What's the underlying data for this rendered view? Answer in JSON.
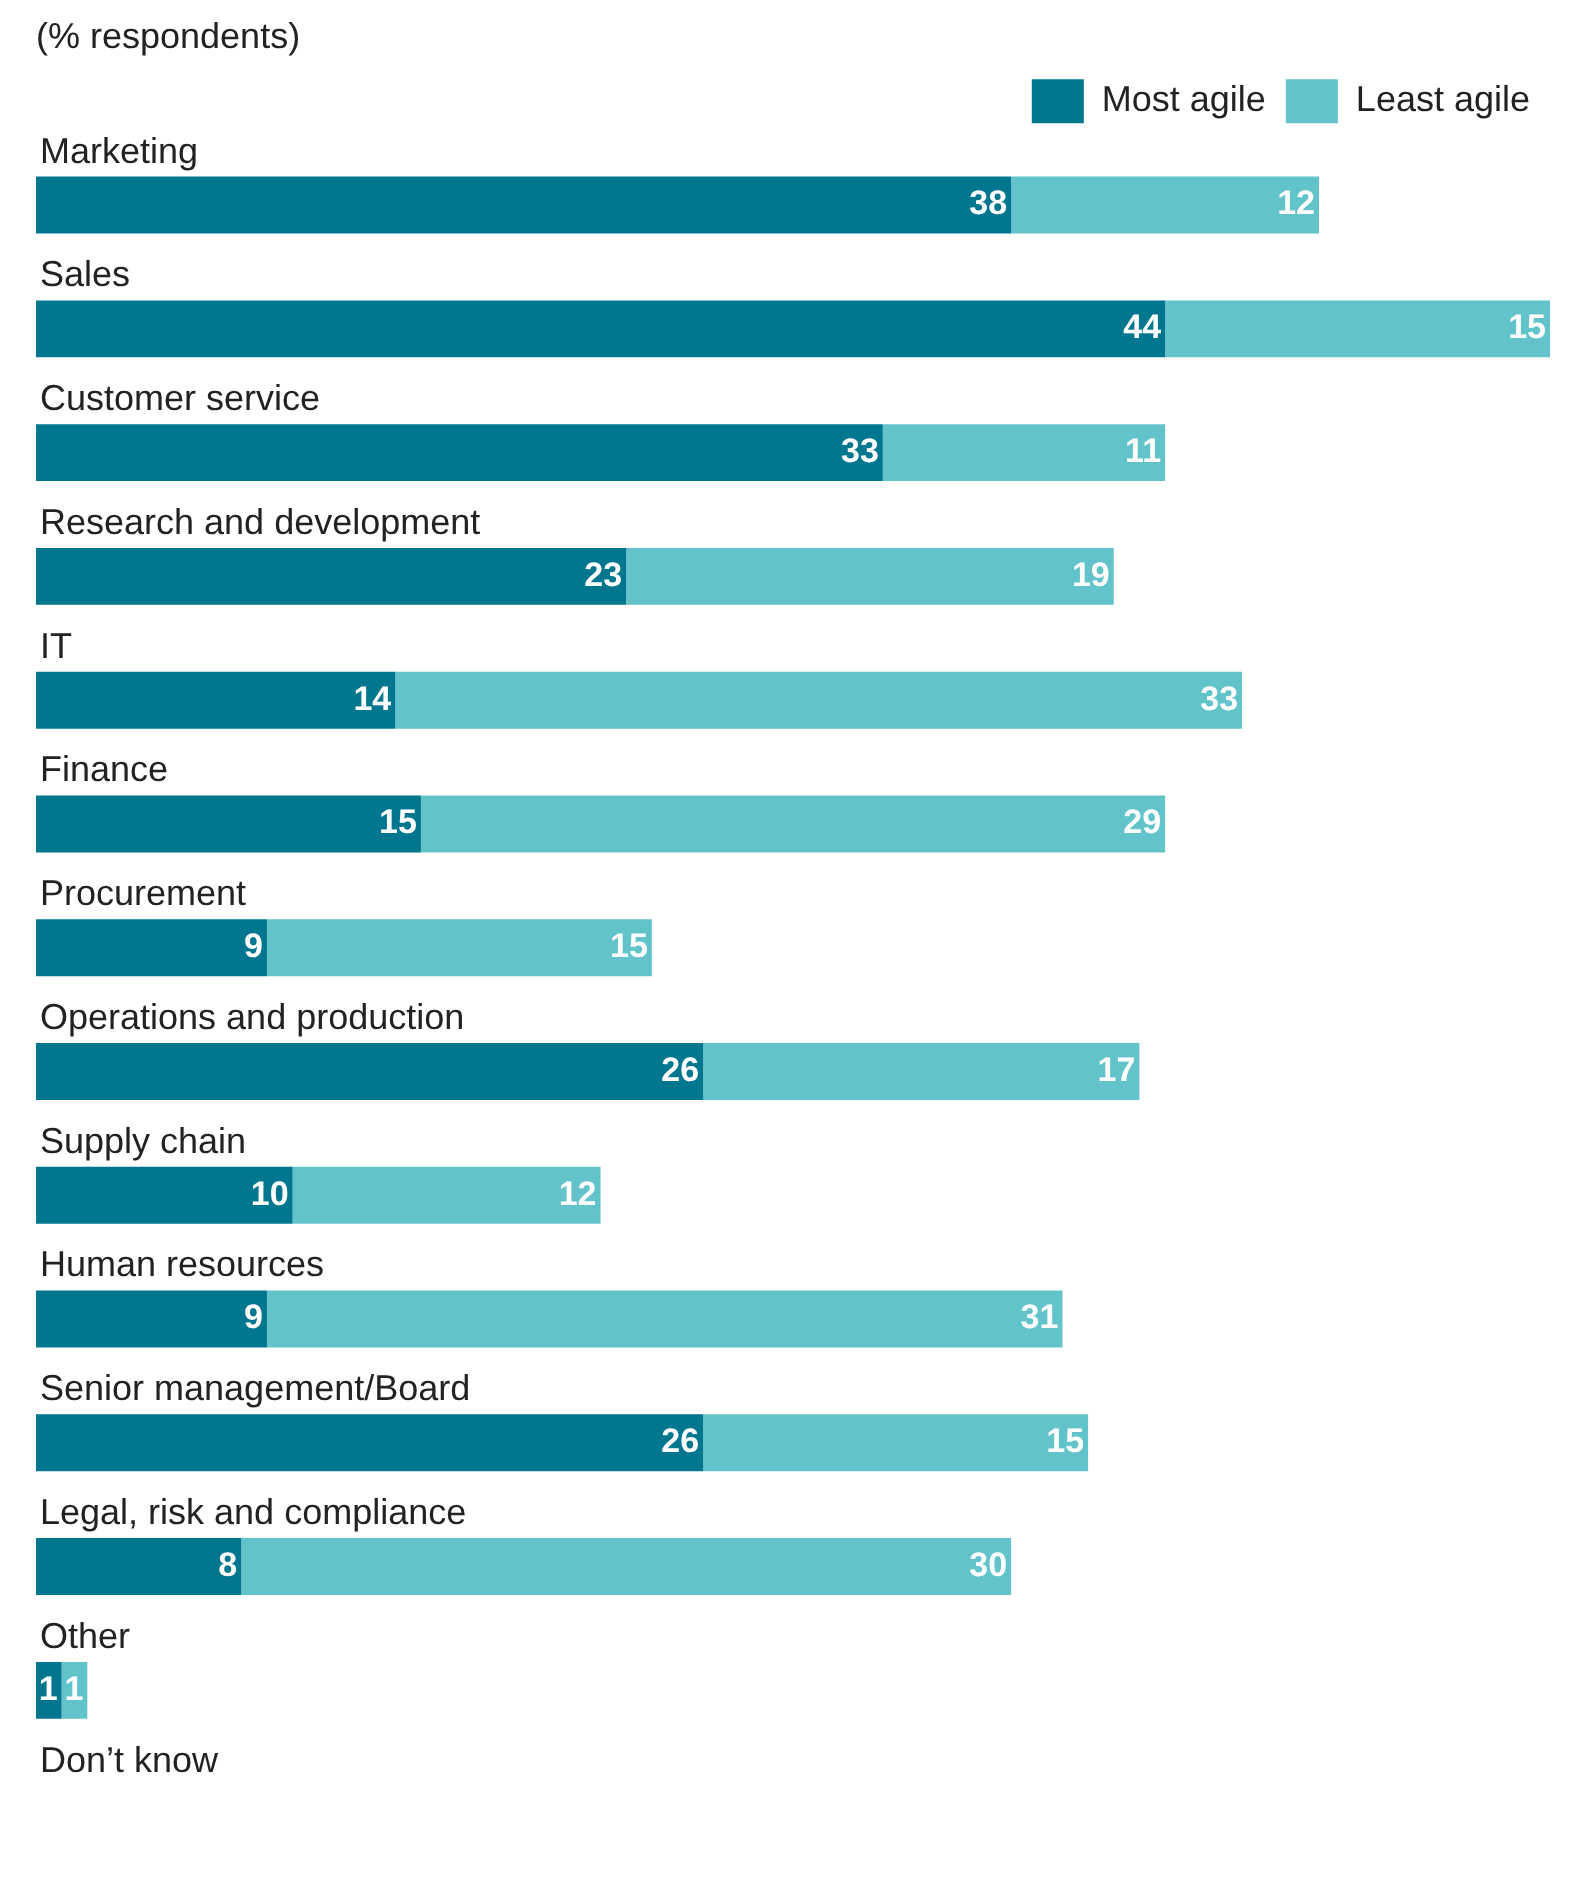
{
  "chart_data": {
    "type": "bar",
    "orientation": "horizontal",
    "stacked": true,
    "subtitle": "(% respondents)",
    "categories": [
      "Marketing",
      "Sales",
      "Customer service",
      "Research and development",
      "IT",
      "Finance",
      "Procurement",
      "Operations and production",
      "Supply chain",
      "Human resources",
      "Senior management/Board",
      "Legal, risk and compliance",
      "Other",
      "Don’t know"
    ],
    "series": [
      {
        "name": "Most agile",
        "color": "#00778f",
        "values": [
          38,
          44,
          33,
          23,
          14,
          15,
          9,
          26,
          10,
          9,
          26,
          8,
          1,
          null
        ]
      },
      {
        "name": "Least agile",
        "color": "#62c3cb",
        "values": [
          12,
          15,
          11,
          19,
          33,
          29,
          15,
          17,
          12,
          31,
          15,
          30,
          1,
          null
        ]
      }
    ],
    "xlim": [
      0,
      59
    ],
    "tick_labels": false,
    "data_labels": true,
    "legend": "top right"
  }
}
